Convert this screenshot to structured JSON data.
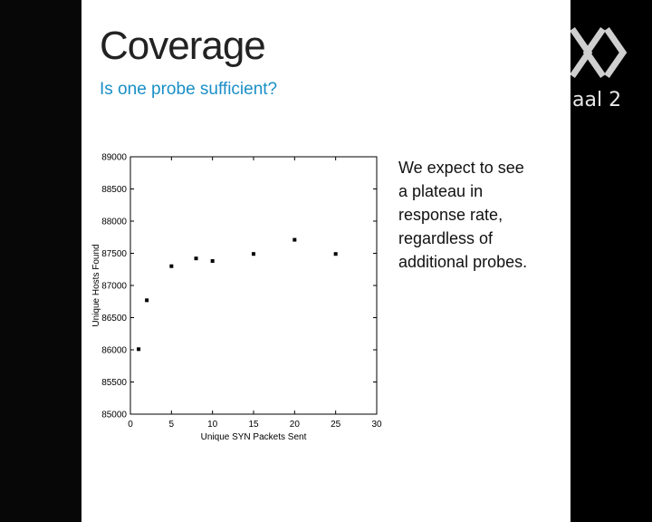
{
  "slide": {
    "title": "Coverage",
    "subtitle": "Is one probe sufficient?",
    "bullet": "We expect to see a plateau in response rate, regardless of additional probes."
  },
  "overlay": {
    "channel_text": "aal 2",
    "logo_icon": "channel-logo-icon"
  },
  "colors": {
    "subtitle": "#1a8fc6",
    "background": "#000000",
    "slide": "#ffffff"
  },
  "chart_data": {
    "type": "scatter",
    "xlabel": "Unique SYN Packets Sent",
    "ylabel": "Unique Hosts Found",
    "xlim": [
      0,
      30
    ],
    "ylim": [
      85000,
      89000
    ],
    "xticks": [
      0,
      5,
      10,
      15,
      20,
      25,
      30
    ],
    "yticks": [
      85000,
      85500,
      86000,
      86500,
      87000,
      87500,
      88000,
      88500,
      89000
    ],
    "grid": false,
    "points": [
      {
        "x": 1,
        "y": 86010
      },
      {
        "x": 2,
        "y": 86770
      },
      {
        "x": 5,
        "y": 87300
      },
      {
        "x": 8,
        "y": 87420
      },
      {
        "x": 10,
        "y": 87380
      },
      {
        "x": 15,
        "y": 87490
      },
      {
        "x": 20,
        "y": 87710
      },
      {
        "x": 25,
        "y": 87490
      }
    ]
  }
}
